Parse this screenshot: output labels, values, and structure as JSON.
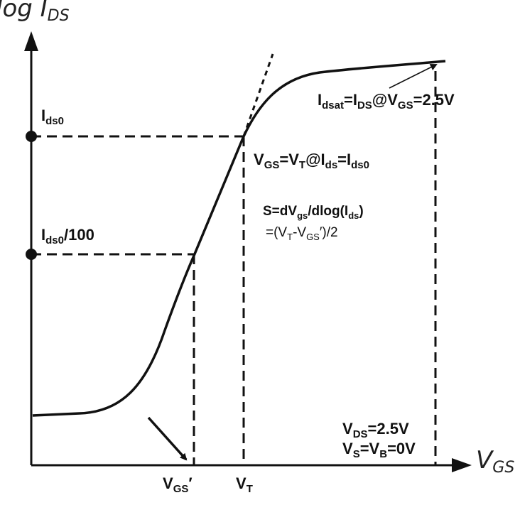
{
  "axes": {
    "y_label_main": "log I",
    "y_label_sub": "DS",
    "x_label_main": "V",
    "x_label_sub": "GS"
  },
  "markers": {
    "ids0_main": "I",
    "ids0_sub": "ds0",
    "ids0_100_main": "I",
    "ids0_100_sub": "ds0",
    "ids0_100_tail": "/100"
  },
  "annotations": {
    "idsat": "Idsat=IDS@VGS=2.5V",
    "vt_def": "VGS=VT@Ids=Ids0",
    "slope_line1": "S=dVgs/dlog(Ids)",
    "slope_line2": "=(VT-VGS′)/2",
    "bias_line1": "VDS=2.5V",
    "bias_line2": "VS=VB=0V"
  },
  "ticks": {
    "vgs_prime": "VGS′",
    "vt": "VT"
  },
  "colors": {
    "ink": "#111111"
  }
}
